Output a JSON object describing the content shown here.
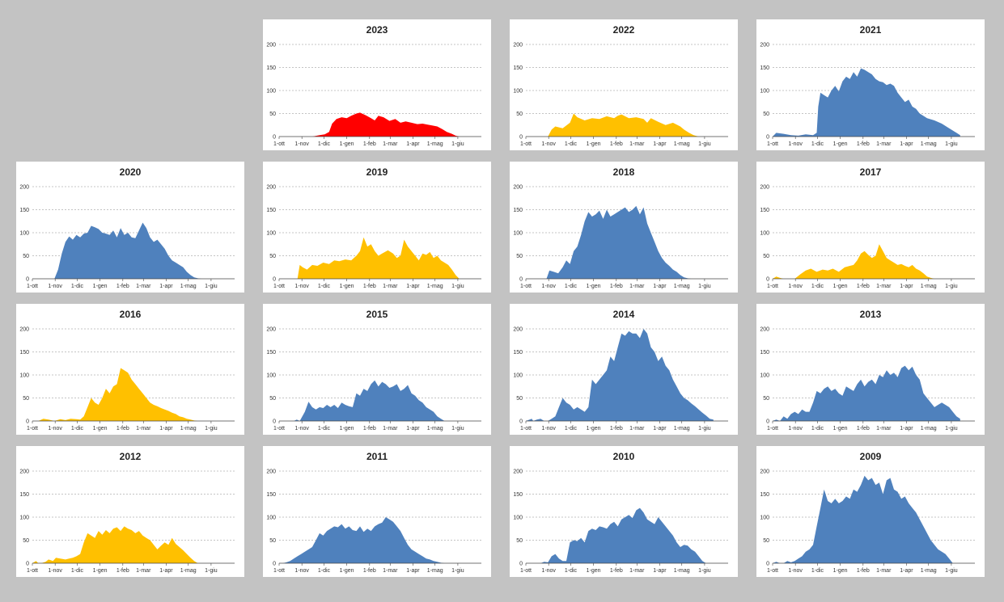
{
  "colors": {
    "background": "#c3c3c3",
    "panel": "#ffffff",
    "blue": "#4f81bd",
    "yellow": "#ffc000",
    "red": "#ff0000",
    "grid": "#8a8a8a",
    "axis": "#444444"
  },
  "x_tick_labels": [
    "1-ott",
    "1-nov",
    "1-dic",
    "1-gen",
    "1-feb",
    "1-mar",
    "1-apr",
    "1-mag",
    "1-giu"
  ],
  "y_tick_labels": [
    "0",
    "50",
    "100",
    "150",
    "200"
  ],
  "chart_data": [
    {
      "type": "area",
      "title": "2023",
      "color": "red",
      "ylim": [
        0,
        200
      ],
      "grid": true,
      "x_unit": "days since 1-ott",
      "x": [
        45,
        55,
        62,
        68,
        72,
        78,
        85,
        92,
        98,
        105,
        110,
        118,
        125,
        130,
        135,
        142,
        150,
        158,
        165,
        172,
        180,
        188,
        195,
        202,
        208,
        215,
        222,
        228,
        235,
        240,
        245
      ],
      "y": [
        0,
        3,
        5,
        10,
        28,
        38,
        42,
        40,
        45,
        50,
        52,
        46,
        40,
        35,
        45,
        42,
        34,
        38,
        30,
        33,
        30,
        27,
        28,
        26,
        24,
        22,
        16,
        10,
        6,
        2,
        0
      ]
    },
    {
      "type": "area",
      "title": "2022",
      "color": "yellow",
      "ylim": [
        0,
        200
      ],
      "grid": true,
      "x_unit": "days since 1-ott",
      "x": [
        30,
        35,
        40,
        50,
        60,
        65,
        70,
        80,
        90,
        100,
        110,
        120,
        125,
        130,
        140,
        150,
        160,
        165,
        170,
        180,
        190,
        200,
        210,
        215,
        222,
        228,
        235
      ],
      "y": [
        0,
        15,
        22,
        18,
        30,
        50,
        42,
        35,
        40,
        38,
        44,
        40,
        45,
        48,
        40,
        42,
        38,
        30,
        40,
        32,
        25,
        30,
        22,
        15,
        8,
        3,
        0
      ]
    },
    {
      "type": "area",
      "title": "2021",
      "color": "blue",
      "ylim": [
        0,
        200
      ],
      "grid": true,
      "x_unit": "days since 1-ott",
      "x": [
        0,
        5,
        15,
        25,
        35,
        45,
        55,
        60,
        62,
        65,
        70,
        75,
        80,
        85,
        90,
        95,
        100,
        105,
        110,
        115,
        120,
        125,
        130,
        135,
        140,
        145,
        150,
        155,
        160,
        165,
        170,
        175,
        180,
        185,
        190,
        195,
        200,
        210,
        220,
        230,
        240,
        250,
        255
      ],
      "y": [
        0,
        8,
        6,
        3,
        2,
        5,
        3,
        8,
        65,
        95,
        90,
        85,
        100,
        110,
        98,
        120,
        130,
        125,
        140,
        130,
        148,
        145,
        140,
        135,
        125,
        120,
        118,
        112,
        115,
        110,
        95,
        85,
        75,
        80,
        65,
        60,
        50,
        40,
        35,
        28,
        18,
        8,
        3
      ]
    },
    {
      "type": "area",
      "title": "2020",
      "color": "blue",
      "ylim": [
        0,
        200
      ],
      "grid": true,
      "x_unit": "days since 1-ott",
      "x": [
        30,
        35,
        40,
        45,
        50,
        55,
        60,
        65,
        70,
        75,
        80,
        85,
        90,
        95,
        100,
        105,
        110,
        115,
        120,
        125,
        130,
        135,
        140,
        145,
        150,
        155,
        160,
        165,
        170,
        175,
        180,
        185,
        190,
        195,
        200,
        205,
        210,
        215,
        220,
        225,
        230
      ],
      "y": [
        0,
        20,
        55,
        80,
        92,
        85,
        95,
        90,
        98,
        100,
        115,
        112,
        108,
        100,
        98,
        95,
        105,
        90,
        110,
        95,
        100,
        90,
        88,
        105,
        122,
        110,
        90,
        80,
        85,
        75,
        65,
        50,
        40,
        35,
        30,
        25,
        15,
        8,
        3,
        1,
        0
      ]
    },
    {
      "type": "area",
      "title": "2019",
      "color": "yellow",
      "ylim": [
        0,
        200
      ],
      "grid": true,
      "x_unit": "days since 1-ott",
      "x": [
        25,
        28,
        32,
        38,
        45,
        52,
        60,
        68,
        75,
        82,
        90,
        98,
        105,
        110,
        115,
        120,
        125,
        130,
        135,
        140,
        148,
        155,
        160,
        165,
        170,
        175,
        180,
        185,
        190,
        195,
        200,
        205,
        210,
        215,
        220,
        225,
        230,
        235,
        240,
        245
      ],
      "y": [
        0,
        30,
        25,
        20,
        30,
        28,
        35,
        32,
        40,
        38,
        42,
        40,
        50,
        60,
        90,
        70,
        75,
        60,
        50,
        55,
        62,
        55,
        45,
        50,
        85,
        70,
        60,
        50,
        40,
        55,
        52,
        58,
        45,
        50,
        40,
        35,
        30,
        20,
        8,
        0
      ]
    },
    {
      "type": "area",
      "title": "2018",
      "color": "blue",
      "ylim": [
        0,
        200
      ],
      "grid": true,
      "x_unit": "days since 1-ott",
      "x": [
        28,
        32,
        38,
        44,
        50,
        55,
        60,
        65,
        70,
        75,
        80,
        85,
        90,
        95,
        100,
        105,
        110,
        115,
        120,
        125,
        130,
        135,
        140,
        145,
        150,
        155,
        160,
        165,
        170,
        175,
        180,
        185,
        190,
        195,
        200,
        205,
        210,
        215,
        220,
        225,
        230
      ],
      "y": [
        0,
        18,
        15,
        12,
        25,
        40,
        32,
        60,
        70,
        95,
        125,
        145,
        135,
        140,
        148,
        130,
        150,
        135,
        140,
        145,
        150,
        155,
        145,
        150,
        158,
        140,
        155,
        120,
        100,
        80,
        60,
        45,
        35,
        28,
        20,
        15,
        8,
        3,
        1,
        0,
        0
      ]
    },
    {
      "type": "area",
      "title": "2017",
      "color": "yellow",
      "ylim": [
        0,
        200
      ],
      "grid": true,
      "x_unit": "days since 1-ott",
      "x": [
        0,
        5,
        10,
        15,
        20,
        25,
        30,
        38,
        45,
        52,
        60,
        68,
        75,
        82,
        90,
        98,
        105,
        110,
        115,
        120,
        125,
        130,
        135,
        140,
        145,
        150,
        155,
        160,
        165,
        170,
        175,
        180,
        185,
        190,
        195,
        200,
        205,
        210,
        215,
        220
      ],
      "y": [
        0,
        5,
        2,
        0,
        0,
        0,
        0,
        10,
        18,
        22,
        15,
        20,
        18,
        22,
        15,
        25,
        28,
        30,
        40,
        55,
        60,
        52,
        45,
        50,
        75,
        60,
        45,
        40,
        35,
        30,
        32,
        28,
        25,
        30,
        22,
        18,
        12,
        5,
        2,
        0
      ]
    },
    {
      "type": "area",
      "title": "2016",
      "color": "yellow",
      "ylim": [
        0,
        200
      ],
      "grid": true,
      "x_unit": "days since 1-ott",
      "x": [
        0,
        8,
        15,
        22,
        30,
        38,
        45,
        52,
        60,
        65,
        70,
        75,
        80,
        85,
        90,
        95,
        100,
        105,
        110,
        115,
        120,
        125,
        130,
        135,
        140,
        145,
        150,
        155,
        160,
        165,
        170,
        175,
        180,
        185,
        190,
        195,
        200,
        205,
        210,
        215,
        220,
        225
      ],
      "y": [
        0,
        0,
        5,
        3,
        0,
        4,
        2,
        5,
        4,
        3,
        10,
        30,
        50,
        40,
        35,
        50,
        70,
        60,
        75,
        80,
        115,
        110,
        105,
        90,
        80,
        70,
        60,
        50,
        40,
        35,
        32,
        28,
        25,
        22,
        18,
        15,
        10,
        8,
        5,
        3,
        1,
        0
      ]
    },
    {
      "type": "area",
      "title": "2015",
      "color": "blue",
      "ylim": [
        0,
        200
      ],
      "grid": true,
      "x_unit": "days since 1-ott",
      "x": [
        20,
        24,
        28,
        35,
        40,
        45,
        50,
        55,
        60,
        65,
        70,
        75,
        80,
        85,
        90,
        95,
        100,
        105,
        110,
        115,
        120,
        125,
        130,
        135,
        140,
        145,
        150,
        155,
        160,
        165,
        170,
        175,
        180,
        185,
        190,
        195,
        200,
        205,
        210,
        215,
        220,
        225
      ],
      "y": [
        0,
        3,
        0,
        20,
        42,
        30,
        25,
        30,
        28,
        35,
        30,
        35,
        28,
        40,
        35,
        32,
        30,
        60,
        55,
        70,
        65,
        80,
        88,
        75,
        85,
        80,
        72,
        75,
        80,
        65,
        70,
        78,
        60,
        55,
        45,
        40,
        30,
        25,
        20,
        10,
        5,
        0
      ]
    },
    {
      "type": "area",
      "title": "2014",
      "color": "blue",
      "ylim": [
        0,
        200
      ],
      "grid": true,
      "x_unit": "days since 1-ott",
      "x": [
        0,
        8,
        10,
        15,
        20,
        25,
        30,
        35,
        40,
        45,
        50,
        55,
        60,
        65,
        70,
        75,
        80,
        85,
        90,
        95,
        100,
        105,
        110,
        115,
        120,
        125,
        130,
        135,
        140,
        145,
        150,
        155,
        160,
        165,
        170,
        175,
        180,
        185,
        190,
        195,
        200,
        205,
        210,
        215,
        220,
        225,
        230,
        235,
        240,
        245,
        250,
        255
      ],
      "y": [
        0,
        5,
        0,
        3,
        5,
        0,
        0,
        5,
        10,
        30,
        50,
        40,
        35,
        25,
        30,
        25,
        20,
        30,
        90,
        80,
        90,
        100,
        110,
        140,
        130,
        160,
        190,
        185,
        195,
        190,
        190,
        180,
        200,
        190,
        160,
        150,
        130,
        140,
        120,
        110,
        90,
        75,
        60,
        50,
        45,
        38,
        32,
        25,
        18,
        12,
        5,
        3
      ]
    },
    {
      "type": "area",
      "title": "2013",
      "color": "blue",
      "ylim": [
        0,
        200
      ],
      "grid": true,
      "x_unit": "days since 1-ott",
      "x": [
        0,
        5,
        10,
        15,
        20,
        25,
        30,
        35,
        40,
        45,
        50,
        55,
        60,
        65,
        70,
        75,
        80,
        85,
        90,
        95,
        100,
        105,
        110,
        115,
        120,
        125,
        130,
        135,
        140,
        145,
        150,
        155,
        160,
        165,
        170,
        175,
        180,
        185,
        190,
        195,
        200,
        205,
        210,
        215,
        220,
        225,
        230,
        235,
        240,
        245,
        250,
        255
      ],
      "y": [
        0,
        3,
        0,
        10,
        5,
        15,
        20,
        15,
        25,
        20,
        20,
        40,
        65,
        60,
        70,
        75,
        65,
        70,
        60,
        55,
        75,
        70,
        65,
        80,
        90,
        75,
        85,
        90,
        80,
        100,
        95,
        110,
        100,
        105,
        95,
        115,
        120,
        110,
        118,
        100,
        90,
        60,
        50,
        40,
        30,
        35,
        40,
        35,
        30,
        20,
        10,
        5
      ]
    },
    {
      "type": "area",
      "title": "2012",
      "color": "yellow",
      "ylim": [
        0,
        200
      ],
      "grid": true,
      "x_unit": "days since 1-ott",
      "x": [
        0,
        5,
        8,
        12,
        18,
        22,
        28,
        32,
        38,
        45,
        50,
        55,
        60,
        65,
        70,
        75,
        80,
        85,
        90,
        95,
        100,
        105,
        110,
        115,
        120,
        125,
        130,
        135,
        140,
        145,
        150,
        155,
        160,
        165,
        170,
        175,
        180,
        185,
        190,
        195,
        200,
        205,
        210,
        215,
        220,
        225
      ],
      "y": [
        0,
        5,
        0,
        0,
        3,
        8,
        5,
        12,
        10,
        8,
        10,
        12,
        15,
        20,
        45,
        65,
        60,
        55,
        70,
        62,
        72,
        65,
        75,
        78,
        70,
        80,
        75,
        72,
        65,
        70,
        60,
        55,
        50,
        40,
        30,
        38,
        45,
        40,
        55,
        42,
        35,
        28,
        20,
        12,
        5,
        0
      ]
    },
    {
      "type": "area",
      "title": "2011",
      "color": "blue",
      "ylim": [
        0,
        200
      ],
      "grid": true,
      "x_unit": "days since 1-ott",
      "x": [
        0,
        5,
        10,
        15,
        20,
        25,
        30,
        35,
        40,
        45,
        50,
        55,
        60,
        65,
        70,
        75,
        80,
        85,
        90,
        95,
        100,
        105,
        110,
        115,
        120,
        125,
        130,
        135,
        140,
        145,
        150,
        155,
        160,
        165,
        170,
        175,
        180,
        185,
        190,
        195,
        200,
        205,
        210,
        215,
        220,
        225
      ],
      "y": [
        0,
        0,
        2,
        5,
        10,
        15,
        20,
        25,
        30,
        35,
        50,
        65,
        60,
        70,
        75,
        80,
        78,
        85,
        75,
        80,
        72,
        70,
        80,
        68,
        75,
        70,
        80,
        85,
        88,
        100,
        95,
        90,
        80,
        70,
        55,
        40,
        30,
        25,
        20,
        15,
        10,
        8,
        5,
        3,
        1,
        0
      ]
    },
    {
      "type": "area",
      "title": "2010",
      "color": "blue",
      "ylim": [
        0,
        200
      ],
      "grid": true,
      "x_unit": "days since 1-ott",
      "x": [
        20,
        25,
        30,
        35,
        40,
        45,
        50,
        55,
        60,
        65,
        70,
        75,
        80,
        85,
        90,
        95,
        100,
        105,
        110,
        115,
        120,
        125,
        130,
        135,
        140,
        145,
        150,
        155,
        160,
        165,
        170,
        175,
        180,
        185,
        190,
        195,
        200,
        205,
        210,
        215,
        220,
        225,
        230,
        235,
        240,
        245
      ],
      "y": [
        0,
        3,
        2,
        15,
        20,
        10,
        5,
        5,
        45,
        50,
        48,
        55,
        45,
        70,
        75,
        72,
        80,
        78,
        75,
        85,
        90,
        80,
        95,
        100,
        105,
        98,
        115,
        120,
        110,
        95,
        90,
        85,
        100,
        90,
        80,
        70,
        60,
        45,
        35,
        40,
        38,
        30,
        25,
        15,
        5,
        0
      ]
    },
    {
      "type": "area",
      "title": "2009",
      "color": "blue",
      "ylim": [
        0,
        200
      ],
      "grid": true,
      "x_unit": "days since 1-ott",
      "x": [
        0,
        5,
        10,
        15,
        20,
        25,
        30,
        35,
        40,
        45,
        50,
        55,
        60,
        65,
        70,
        75,
        80,
        85,
        90,
        95,
        100,
        105,
        110,
        115,
        120,
        125,
        130,
        135,
        140,
        145,
        150,
        155,
        160,
        165,
        170,
        175,
        180,
        185,
        190,
        195,
        200,
        205,
        210,
        215,
        220,
        225,
        230,
        235,
        240,
        245
      ],
      "y": [
        0,
        3,
        0,
        0,
        5,
        2,
        5,
        10,
        15,
        25,
        30,
        40,
        80,
        120,
        160,
        135,
        130,
        140,
        130,
        135,
        145,
        140,
        160,
        155,
        170,
        190,
        180,
        185,
        170,
        175,
        150,
        180,
        185,
        160,
        155,
        140,
        145,
        130,
        120,
        110,
        95,
        80,
        65,
        50,
        40,
        30,
        25,
        20,
        10,
        0
      ]
    }
  ]
}
